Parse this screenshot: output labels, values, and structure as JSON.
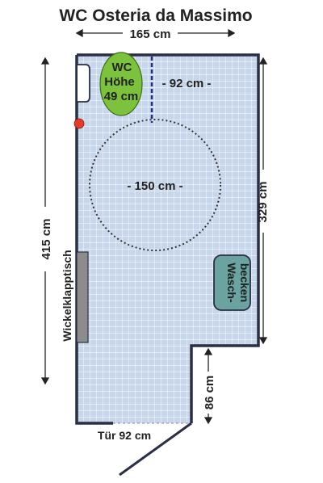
{
  "title": "WC Osteria da Massimo",
  "dimensions": {
    "top_width": "165 cm",
    "left_height": "415 cm",
    "right_height": "329 cm",
    "door_recess": "86 cm",
    "door_width": "Tür 92 cm"
  },
  "toilet": {
    "line1": "WC",
    "line2": "Höhe",
    "line3": "49 cm",
    "clearance": "- 92 cm -"
  },
  "turning_circle": "- 150 cm -",
  "changing_table": "Wickelklapptisch",
  "sink": {
    "line1": "Wasch-",
    "line2": "becken"
  },
  "colors": {
    "floor": "#c7d6ea",
    "tile_grid": "#ffffff",
    "wall": "#2a2f45",
    "toilet": "#7cc23c",
    "sink": "#6aa3a0",
    "changing_table": "#8c8c8c",
    "emergency_button": "#e53a2a",
    "toilet_line": "#1f2e8a"
  }
}
